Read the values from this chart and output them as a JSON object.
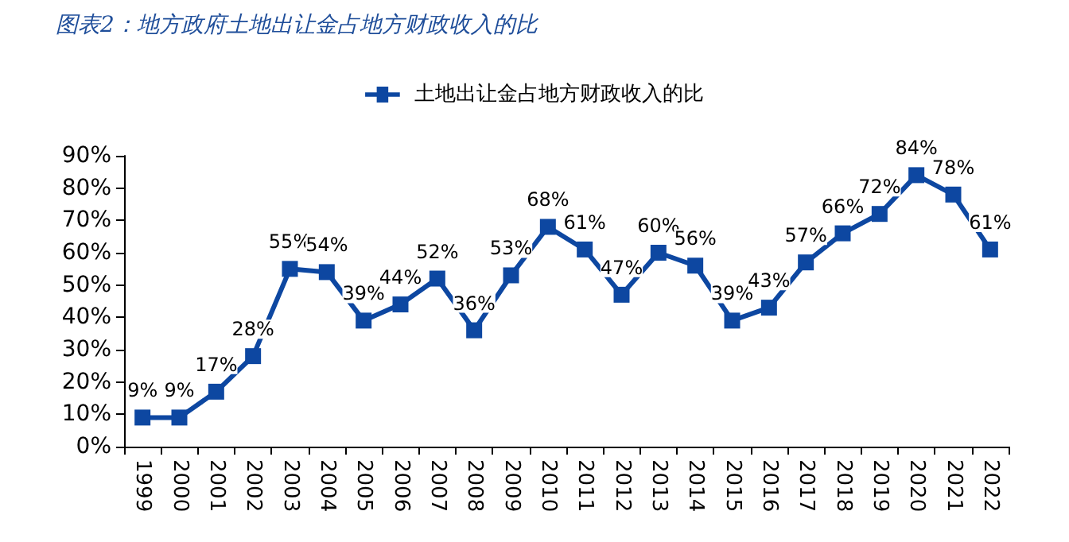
{
  "chart_data": {
    "type": "line",
    "title": "图表2：地方政府土地出让金占地方财政收入的比",
    "categories": [
      "1999",
      "2000",
      "2001",
      "2002",
      "2003",
      "2004",
      "2005",
      "2006",
      "2007",
      "2008",
      "2009",
      "2010",
      "2011",
      "2012",
      "2013",
      "2014",
      "2015",
      "2016",
      "2017",
      "2018",
      "2019",
      "2020",
      "2021",
      "2022"
    ],
    "series": [
      {
        "name": "土地出让金占地方财政收入的比",
        "color": "#0d47a1",
        "values": [
          9,
          9,
          17,
          28,
          55,
          54,
          39,
          44,
          52,
          36,
          53,
          68,
          61,
          47,
          60,
          56,
          39,
          43,
          57,
          66,
          72,
          84,
          78,
          61
        ],
        "value_labels": [
          "9%",
          "9%",
          "17%",
          "28%",
          "55%",
          "54%",
          "39%",
          "44%",
          "52%",
          "36%",
          "53%",
          "68%",
          "61%",
          "47%",
          "60%",
          "56%",
          "39%",
          "43%",
          "57%",
          "66%",
          "72%",
          "84%",
          "78%",
          "61%"
        ]
      }
    ],
    "ylim": [
      0,
      90
    ],
    "yticks": [
      {
        "value": 0,
        "label": "0%"
      },
      {
        "value": 10,
        "label": "10%"
      },
      {
        "value": 20,
        "label": "20%"
      },
      {
        "value": 30,
        "label": "30%"
      },
      {
        "value": 40,
        "label": "40%"
      },
      {
        "value": 50,
        "label": "50%"
      },
      {
        "value": 60,
        "label": "60%"
      },
      {
        "value": 70,
        "label": "70%"
      },
      {
        "value": 80,
        "label": "80%"
      },
      {
        "value": 90,
        "label": "90%"
      }
    ],
    "grid": false,
    "legend": "top",
    "marker": "square",
    "line_style": "solid"
  }
}
